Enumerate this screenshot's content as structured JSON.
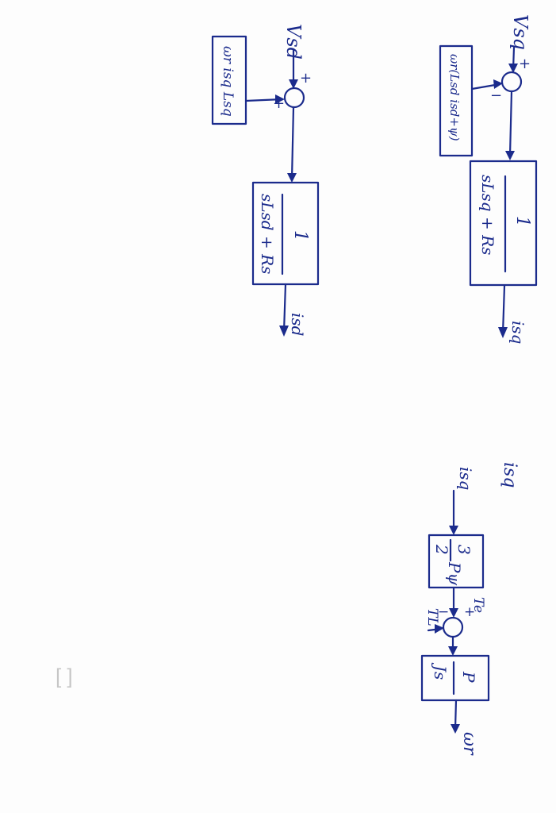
{
  "diagram": {
    "d_axis": {
      "input": "Vsd",
      "output": "isd",
      "feedforward": "ωr isq Lsq",
      "signs": [
        "+",
        "+"
      ],
      "block": {
        "numerator": "1",
        "denominator": "sLsd + Rs"
      }
    },
    "q_axis": {
      "input": "Vsq",
      "output": "isq",
      "feedforward": "ωr(Lsd isd+ψ)",
      "signs": [
        "+",
        "−"
      ],
      "block": {
        "numerator": "1",
        "denominator": "sLsq + Rs"
      }
    },
    "mechanical": {
      "input": "isq",
      "input_scribble": "isq",
      "torque_block": {
        "numerator": "3",
        "denominator": "2",
        "factor": "Pψ"
      },
      "electric_torque": "Te",
      "load_torque": "TL",
      "signs": [
        "+",
        "−"
      ],
      "inertia_block": {
        "numerator": "P",
        "denominator": "Js"
      },
      "output": "ωr"
    }
  }
}
